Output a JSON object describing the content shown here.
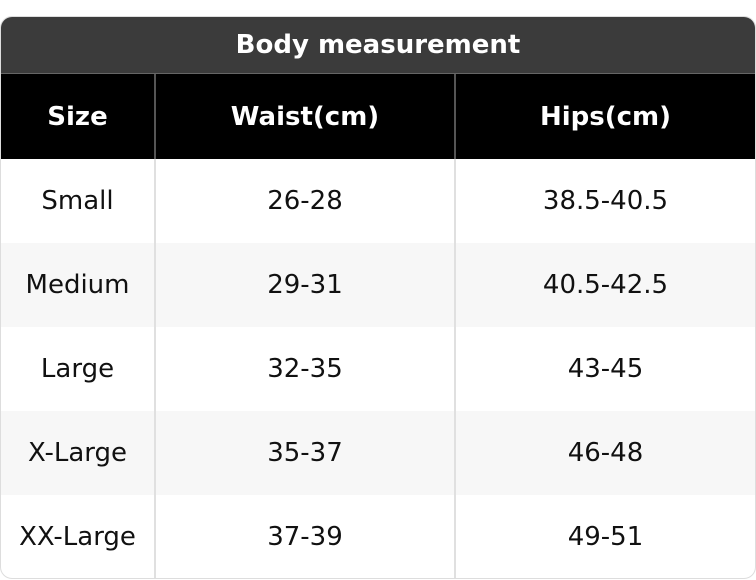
{
  "header": {
    "title": "Body measurement"
  },
  "table": {
    "columns": [
      "Size",
      "Waist(cm)",
      "Hips(cm)"
    ],
    "rows": [
      [
        "Small",
        "26-28",
        "38.5-40.5"
      ],
      [
        "Medium",
        "29-31",
        "40.5-42.5"
      ],
      [
        "Large",
        "32-35",
        "43-45"
      ],
      [
        "X-Large",
        "35-37",
        "46-48"
      ],
      [
        "XX-Large",
        "37-39",
        "49-51"
      ]
    ]
  }
}
